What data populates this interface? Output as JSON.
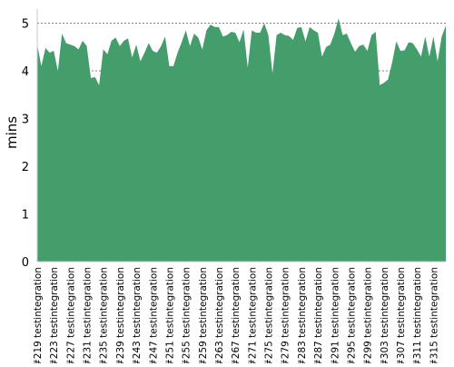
{
  "chart_data": {
    "type": "area",
    "title": "",
    "xlabel": "",
    "ylabel": "mins",
    "ylim": [
      0,
      5.2
    ],
    "y_ticks": [
      0,
      1,
      2,
      3,
      4,
      5
    ],
    "grid": true,
    "colors": {
      "fill": "#439e6b",
      "grid": "#5a5a5a",
      "axis": "#c8c8c8"
    },
    "x_tick_labels": [
      "#219 testintegration",
      "#223 testintegration",
      "#227 testintegration",
      "#231 testintegration",
      "#235 testintegration",
      "#239 testintegration",
      "#243 testintegration",
      "#247 testintegration",
      "#251 testintegration",
      "#255 testintegration",
      "#259 testintegration",
      "#263 testintegration",
      "#267 testintegration",
      "#271 testintegration",
      "#275 testintegration",
      "#279 testintegration",
      "#283 testintegration",
      "#287 testintegration",
      "#291 testintegration",
      "#295 testintegration",
      "#299 testintegration",
      "#303 testintegration",
      "#307 testintegration",
      "#311 testintegration",
      "#315 testintegration"
    ],
    "x": [
      219,
      220,
      221,
      222,
      223,
      224,
      225,
      226,
      227,
      228,
      229,
      230,
      231,
      232,
      233,
      234,
      235,
      236,
      237,
      238,
      239,
      240,
      241,
      242,
      243,
      244,
      245,
      246,
      247,
      248,
      249,
      250,
      251,
      252,
      253,
      254,
      255,
      256,
      257,
      258,
      259,
      260,
      261,
      262,
      263,
      264,
      265,
      266,
      267,
      268,
      269,
      270,
      271,
      272,
      273,
      274,
      275,
      276,
      277,
      278,
      279,
      280,
      281,
      282,
      283,
      284,
      285,
      286,
      287,
      288,
      289,
      290,
      291,
      292,
      293,
      294,
      295,
      296,
      297,
      298,
      299,
      300,
      301,
      302,
      303,
      304,
      305,
      306,
      307,
      308,
      309,
      310,
      311,
      312,
      313,
      314,
      315,
      316,
      317,
      318
    ],
    "series": [
      {
        "values": [
          4.55,
          4.1,
          4.48,
          4.38,
          4.42,
          4.0,
          4.78,
          4.58,
          4.55,
          4.52,
          4.45,
          4.63,
          4.52,
          3.85,
          3.87,
          3.7,
          4.45,
          4.35,
          4.63,
          4.7,
          4.52,
          4.63,
          4.68,
          4.28,
          4.55,
          4.2,
          4.38,
          4.58,
          4.42,
          4.38,
          4.52,
          4.72,
          4.1,
          4.1,
          4.38,
          4.6,
          4.85,
          4.52,
          4.78,
          4.7,
          4.45,
          4.85,
          4.97,
          4.92,
          4.92,
          4.72,
          4.75,
          4.82,
          4.8,
          4.6,
          4.87,
          4.07,
          4.85,
          4.8,
          4.8,
          5.0,
          4.75,
          3.95,
          4.75,
          4.8,
          4.75,
          4.73,
          4.65,
          4.9,
          4.92,
          4.62,
          4.92,
          4.85,
          4.8,
          4.3,
          4.5,
          4.55,
          4.78,
          5.1,
          4.75,
          4.78,
          4.58,
          4.4,
          4.52,
          4.55,
          4.42,
          4.75,
          4.82,
          3.7,
          3.75,
          3.82,
          4.18,
          4.62,
          4.42,
          4.43,
          4.6,
          4.58,
          4.45,
          4.3,
          4.72,
          4.3,
          4.72,
          4.2,
          4.72,
          4.95
        ]
      }
    ]
  }
}
